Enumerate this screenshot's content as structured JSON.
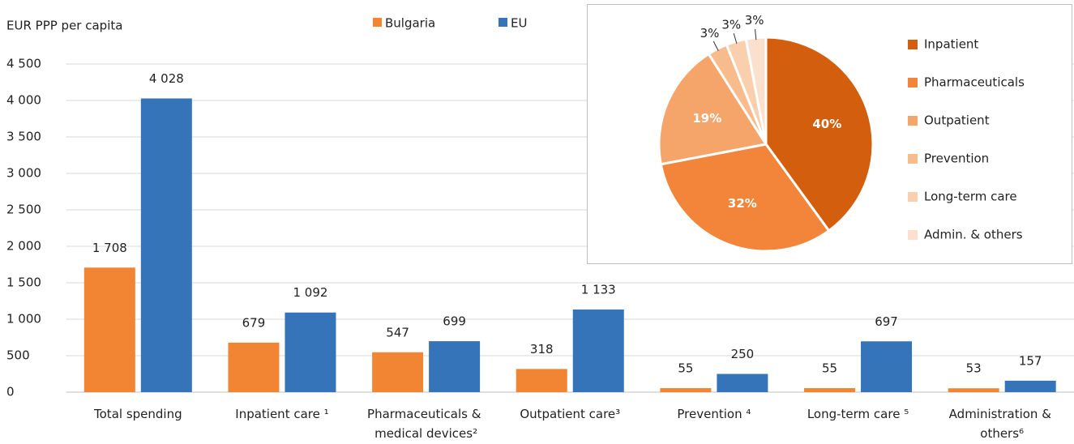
{
  "chart_data": [
    {
      "type": "bar",
      "y_label": "EUR PPP per capita",
      "categories": [
        "Total spending",
        "Inpatient care ¹",
        "Pharmaceuticals & medical devices²",
        "Outpatient care³",
        "Prevention ⁴",
        "Long-term care ⁵",
        "Administration & others⁶"
      ],
      "series": [
        {
          "name": "Bulgaria",
          "color": "#f28534",
          "values": [
            1708,
            679,
            547,
            318,
            55,
            55,
            53
          ],
          "value_labels": [
            "1 708",
            "679",
            "547",
            "318",
            "55",
            "55",
            "53"
          ]
        },
        {
          "name": "EU",
          "color": "#3674ba",
          "values": [
            4028,
            1092,
            699,
            1133,
            250,
            697,
            157
          ],
          "value_labels": [
            "4 028",
            "1 092",
            "699",
            "1 133",
            "250",
            "697",
            "157"
          ]
        }
      ],
      "ylim": [
        0,
        4500
      ],
      "yticks": [
        0,
        500,
        {
          "value": 1000,
          "label": "1 000"
        },
        {
          "value": 1500,
          "label": "1 500"
        },
        {
          "value": 2000,
          "label": "2 000"
        },
        {
          "value": 2500,
          "label": "2 500"
        },
        {
          "value": 3000,
          "label": "3 000"
        },
        {
          "value": 3500,
          "label": "3 500"
        },
        {
          "value": 4000,
          "label": "4 000"
        },
        {
          "value": 4500,
          "label": "4 500"
        }
      ],
      "grid": true
    },
    {
      "type": "pie",
      "categories": [
        "Inpatient",
        "Pharmaceuticals",
        "Outpatient",
        "Prevention",
        "Long-term care",
        "Admin. & others"
      ],
      "values": [
        40,
        32,
        19,
        3,
        3,
        3
      ],
      "value_labels": [
        "40%",
        "32%",
        "19%",
        "3%",
        "3%",
        "3%"
      ],
      "colors": [
        "#d35f0e",
        "#f2853a",
        "#f5a46a",
        "#f8bc8c",
        "#f9cfae",
        "#fbe1cd"
      ]
    }
  ]
}
